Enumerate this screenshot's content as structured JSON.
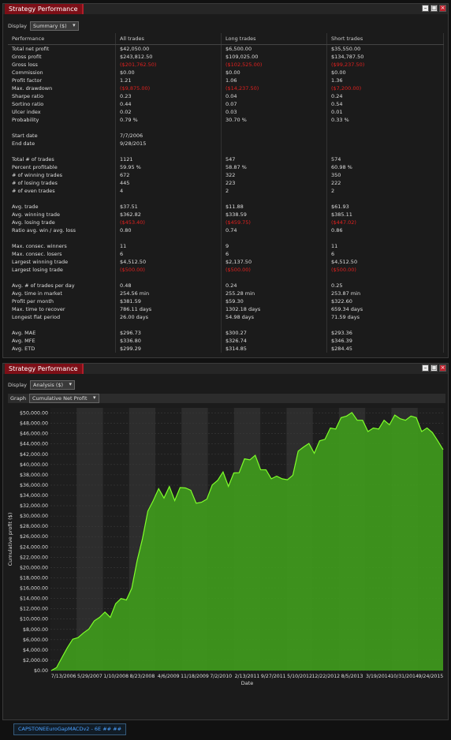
{
  "top_panel": {
    "title": "Strategy Performance",
    "display_label": "Display",
    "display_value": "Summary ($)",
    "headers": [
      "Performance",
      "All trades",
      "Long trades",
      "Short trades"
    ],
    "groups": [
      [
        {
          "label": "Total net profit",
          "all": "$42,050.00",
          "long": "$6,500.00",
          "short": "$35,550.00"
        },
        {
          "label": "Gross profit",
          "all": "$243,812.50",
          "long": "$109,025.00",
          "short": "$134,787.50"
        },
        {
          "label": "Gross loss",
          "all": "($201,762.50)",
          "long": "($102,525.00)",
          "short": "($99,237.50)",
          "neg": true
        },
        {
          "label": "Commission",
          "all": "$0.00",
          "long": "$0.00",
          "short": "$0.00"
        },
        {
          "label": "Profit factor",
          "all": "1.21",
          "long": "1.06",
          "short": "1.36"
        },
        {
          "label": "Max. drawdown",
          "all": "($9,875.00)",
          "long": "($14,237.50)",
          "short": "($7,200.00)",
          "neg": true
        },
        {
          "label": "Sharpe ratio",
          "all": "0.23",
          "long": "0.04",
          "short": "0.24"
        },
        {
          "label": "Sortino ratio",
          "all": "0.44",
          "long": "0.07",
          "short": "0.54"
        },
        {
          "label": "Ulcer index",
          "all": "0.02",
          "long": "0.03",
          "short": "0.01"
        },
        {
          "label": "Probability",
          "all": "0.79 %",
          "long": "30.70 %",
          "short": "0.33 %"
        }
      ],
      [
        {
          "label": "Start date",
          "all": "7/7/2006",
          "long": "",
          "short": ""
        },
        {
          "label": "End date",
          "all": "9/28/2015",
          "long": "",
          "short": ""
        }
      ],
      [
        {
          "label": "Total # of trades",
          "all": "1121",
          "long": "547",
          "short": "574"
        },
        {
          "label": "Percent profitable",
          "all": "59.95 %",
          "long": "58.87 %",
          "short": "60.98 %"
        },
        {
          "label": "# of winning trades",
          "all": "672",
          "long": "322",
          "short": "350"
        },
        {
          "label": "# of losing trades",
          "all": "445",
          "long": "223",
          "short": "222"
        },
        {
          "label": "# of even trades",
          "all": "4",
          "long": "2",
          "short": "2"
        }
      ],
      [
        {
          "label": "Avg. trade",
          "all": "$37.51",
          "long": "$11.88",
          "short": "$61.93"
        },
        {
          "label": "Avg. winning trade",
          "all": "$362.82",
          "long": "$338.59",
          "short": "$385.11"
        },
        {
          "label": "Avg. losing trade",
          "all": "($453.40)",
          "long": "($459.75)",
          "short": "($447.02)",
          "neg": true
        },
        {
          "label": "Ratio avg. win / avg. loss",
          "all": "0.80",
          "long": "0.74",
          "short": "0.86"
        }
      ],
      [
        {
          "label": "Max. consec. winners",
          "all": "11",
          "long": "9",
          "short": "11"
        },
        {
          "label": "Max. consec. losers",
          "all": "6",
          "long": "6",
          "short": "6"
        },
        {
          "label": "Largest winning trade",
          "all": "$4,512.50",
          "long": "$2,137.50",
          "short": "$4,512.50"
        },
        {
          "label": "Largest losing trade",
          "all": "($500.00)",
          "long": "($500.00)",
          "short": "($500.00)",
          "neg": true
        }
      ],
      [
        {
          "label": "Avg. # of trades per day",
          "all": "0.48",
          "long": "0.24",
          "short": "0.25"
        },
        {
          "label": "Avg. time in market",
          "all": "254.56 min",
          "long": "255.28 min",
          "short": "253.87 min"
        },
        {
          "label": "Profit per month",
          "all": "$381.59",
          "long": "$59.30",
          "short": "$322.60"
        },
        {
          "label": "Max. time to recover",
          "all": "786.11 days",
          "long": "1302.18 days",
          "short": "659.34 days"
        },
        {
          "label": "Longest flat period",
          "all": "26.00 days",
          "long": "54.98 days",
          "short": "71.59 days"
        }
      ],
      [
        {
          "label": "Avg. MAE",
          "all": "$296.73",
          "long": "$300.27",
          "short": "$293.36"
        },
        {
          "label": "Avg. MFE",
          "all": "$336.80",
          "long": "$326.74",
          "short": "$346.39"
        },
        {
          "label": "Avg. ETD",
          "all": "$299.29",
          "long": "$314.85",
          "short": "$284.45"
        }
      ]
    ]
  },
  "bottom_panel": {
    "title": "Strategy Performance",
    "display_label": "Display",
    "display_value": "Analysis ($)",
    "graph_label": "Graph",
    "graph_value": "Cumulative Net Profit"
  },
  "chart_data": {
    "type": "area",
    "xlabel": "Date",
    "ylabel": "Cumulative profit ($)",
    "ylim": [
      0,
      51000
    ],
    "yticks": [
      0,
      2000,
      4000,
      6000,
      8000,
      10000,
      12000,
      14000,
      16000,
      18000,
      20000,
      22000,
      24000,
      26000,
      28000,
      30000,
      32000,
      34000,
      36000,
      38000,
      40000,
      42000,
      44000,
      46000,
      48000,
      50000
    ],
    "ytick_labels": [
      "$0.00",
      "$2,000.00",
      "$4,000.00",
      "$6,000.00",
      "$8,000.00",
      "$10,000.00",
      "$12,000.00",
      "$14,000.00",
      "$16,000.00",
      "$18,000.00",
      "$20,000.00",
      "$22,000.00",
      "$24,000.00",
      "$26,000.00",
      "$28,000.00",
      "$30,000.00",
      "$32,000.00",
      "$34,000.00",
      "$36,000.00",
      "$38,000.00",
      "$40,000.00",
      "$42,000.00",
      "$44,000.00",
      "$46,000.00",
      "$48,000.00",
      "$50,000.00"
    ],
    "xtick_labels": [
      "7/13/2006",
      "5/29/2007",
      "1/10/2008",
      "8/23/2008",
      "4/6/2009",
      "11/18/2009",
      "7/2/2010",
      "2/13/2011",
      "9/27/2011",
      "5/10/2012",
      "12/22/2012",
      "8/5/2013",
      "3/19/2014",
      "10/31/2014",
      "9/24/2015"
    ],
    "grid": true,
    "fill_color": "#3f9a1c",
    "line_color": "#7fff2a",
    "series": [
      {
        "values": [
          0,
          600,
          2500,
          4500,
          6000,
          6500,
          7200,
          8200,
          9500,
          10500,
          11200,
          10500,
          12800,
          14200,
          13500,
          16200,
          21000,
          26000,
          30500,
          33500,
          34800,
          34000,
          35200,
          33500,
          35000,
          36000,
          34500,
          33000,
          32200,
          33800,
          35500,
          37500,
          38000,
          36300,
          37800,
          39000,
          40500,
          41500,
          41200,
          39600,
          38400,
          37800,
          37200,
          37800,
          36500,
          38500,
          42000,
          44000,
          43500,
          42800,
          44000,
          45500,
          46500,
          47500,
          48500,
          50000,
          49500,
          49200,
          48000,
          47000,
          46500,
          47500,
          48000,
          48300,
          49000,
          49500,
          48000,
          50000,
          48500,
          47000,
          46500,
          46800,
          44000,
          43500
        ]
      }
    ]
  },
  "footer": {
    "tab_label": "CAPSTONEEuroGapMACDv2 - 6E ## ##"
  }
}
